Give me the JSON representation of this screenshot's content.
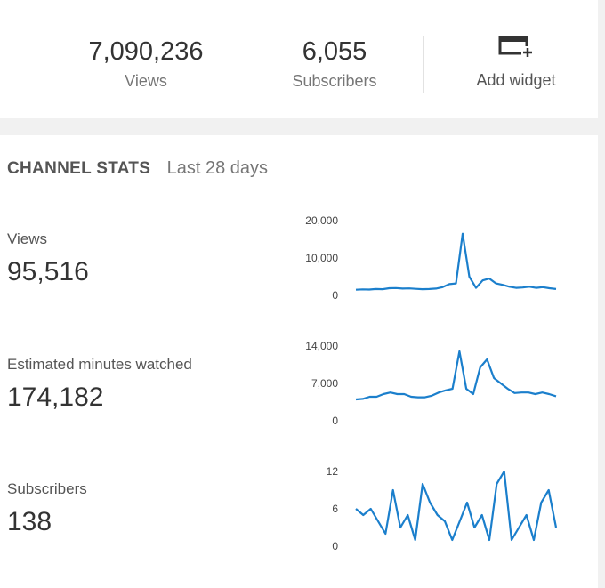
{
  "summary": {
    "views": {
      "value": "7,090,236",
      "label": "Views"
    },
    "subscribers": {
      "value": "6,055",
      "label": "Subscribers"
    },
    "add_widget": {
      "label": "Add widget",
      "icon": "add-widget-icon"
    }
  },
  "channel_stats": {
    "title": "CHANNEL STATS",
    "period": "Last 28 days",
    "metrics": [
      {
        "label": "Views",
        "value": "95,516"
      },
      {
        "label": "Estimated minutes watched",
        "value": "174,182"
      },
      {
        "label": "Subscribers",
        "value": "138"
      }
    ]
  },
  "colors": {
    "line": "#1b7fcc",
    "background": "#f1f1f1",
    "card": "#ffffff"
  },
  "chart_data": [
    {
      "type": "line",
      "series": [
        {
          "values": [
            1500,
            1600,
            1550,
            1700,
            1650,
            1900,
            1950,
            1800,
            1850,
            1750,
            1650,
            1700,
            1800,
            2200,
            3000,
            3200,
            16500,
            5000,
            2000,
            4000,
            4500,
            3200,
            2800,
            2300,
            2000,
            2100,
            2300,
            2000,
            2200,
            1900,
            1700
          ]
        }
      ],
      "ylim": [
        0,
        20000
      ],
      "yticks": [
        "20,000",
        "10,000",
        "0"
      ]
    },
    {
      "type": "line",
      "series": [
        {
          "values": [
            4000,
            4100,
            4500,
            4500,
            5000,
            5300,
            5000,
            5000,
            4500,
            4400,
            4400,
            4700,
            5300,
            5700,
            6000,
            13000,
            6000,
            5000,
            10000,
            11500,
            8000,
            7000,
            6000,
            5200,
            5300,
            5300,
            5000,
            5300,
            5000,
            4600
          ]
        }
      ],
      "ylim": [
        0,
        14000
      ],
      "yticks": [
        "14,000",
        "7,000",
        "0"
      ]
    },
    {
      "type": "line",
      "series": [
        {
          "values": [
            6,
            5,
            6,
            4,
            2,
            9,
            3,
            5,
            1,
            10,
            7,
            5,
            4,
            1,
            4,
            7,
            3,
            5,
            1,
            10,
            12,
            1,
            3,
            5,
            1,
            7,
            9,
            3
          ]
        }
      ],
      "ylim": [
        0,
        12
      ],
      "yticks": [
        "12",
        "6",
        "0"
      ]
    }
  ]
}
